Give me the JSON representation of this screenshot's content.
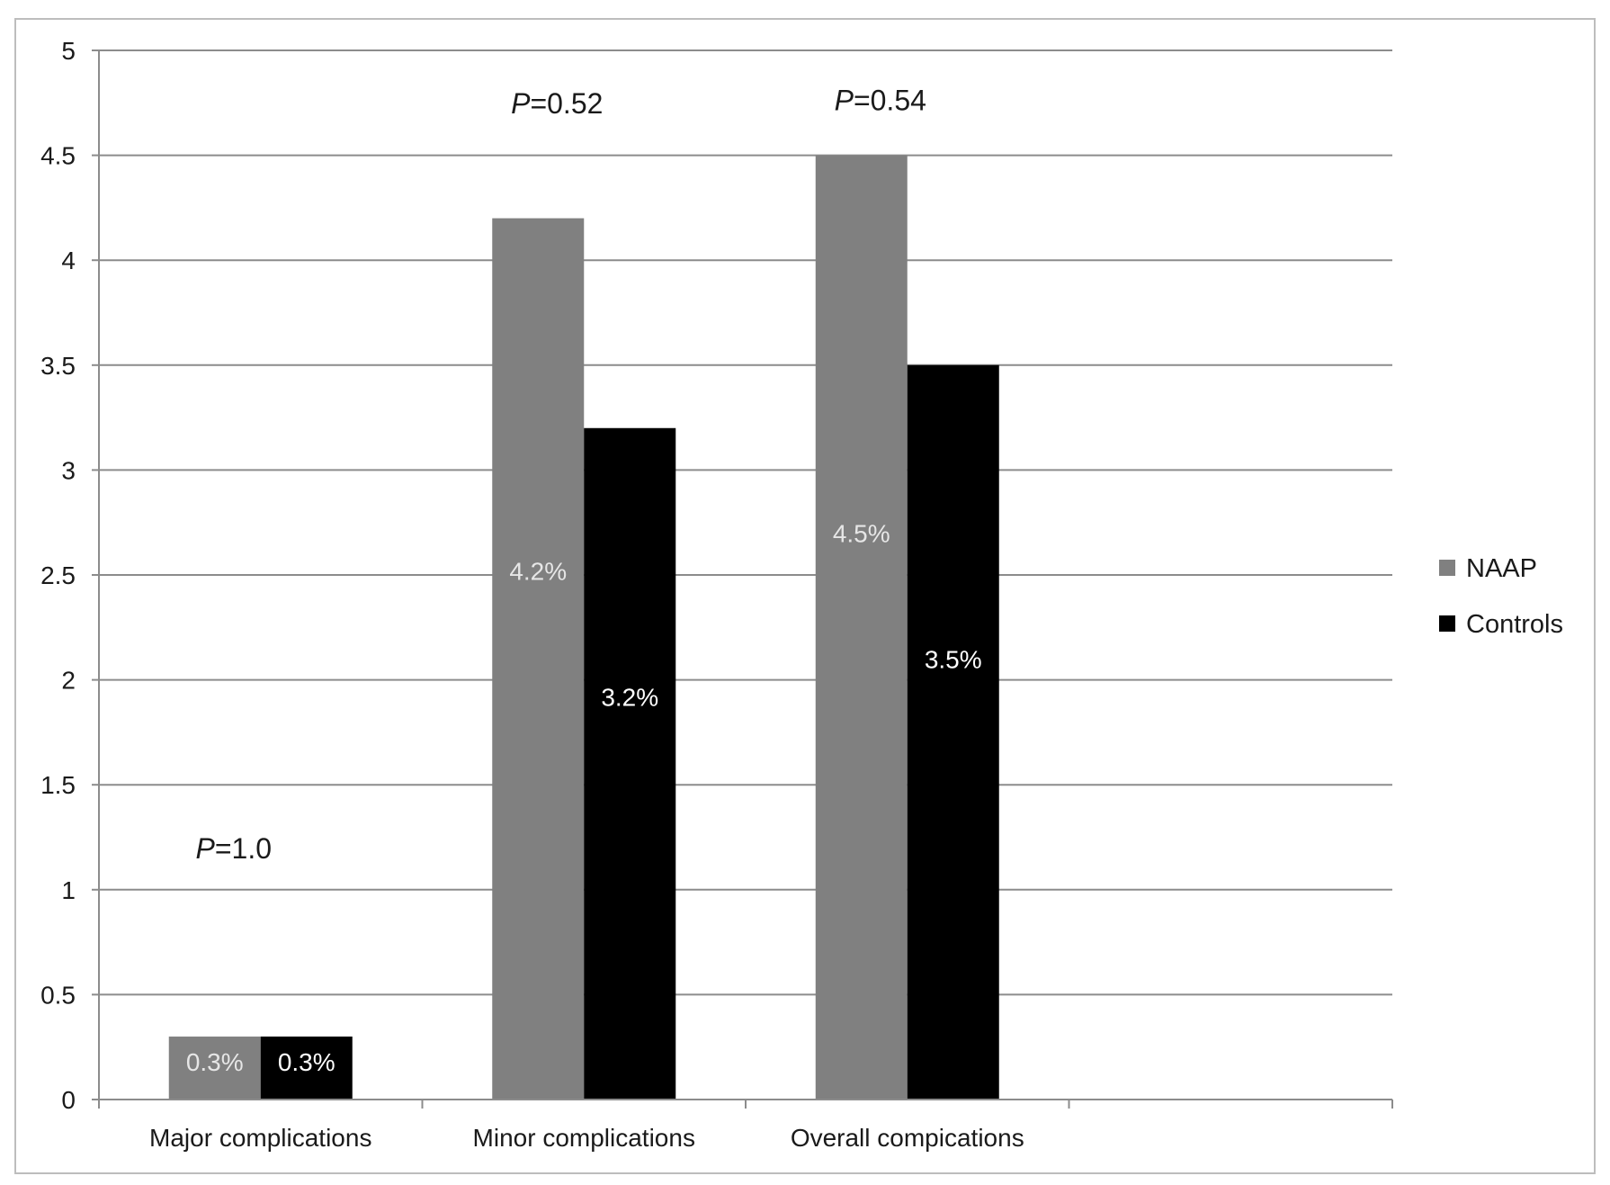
{
  "chart_data": {
    "type": "bar",
    "title": "",
    "xlabel": "",
    "ylabel": "",
    "ylim": [
      0,
      5
    ],
    "yticks": [
      0,
      0.5,
      1,
      1.5,
      2,
      2.5,
      3,
      3.5,
      4,
      4.5,
      5
    ],
    "ytick_labels": [
      "0",
      "0.5",
      "1",
      "1.5",
      "2",
      "2.5",
      "3",
      "3.5",
      "4",
      "4.5",
      "5"
    ],
    "grid": true,
    "legend_position": "right",
    "categories": [
      "Major complications",
      "Minor complications",
      "Overall compications"
    ],
    "series": [
      {
        "name": "NAAP",
        "color": "#808080",
        "label_color": "#e6e6e6",
        "values": [
          0.3,
          4.2,
          4.5
        ],
        "data_labels": [
          "0.3%",
          "4.2%",
          "4.5%"
        ]
      },
      {
        "name": "Controls",
        "color": "#000000",
        "label_color": "#ffffff",
        "values": [
          0.3,
          3.2,
          3.5
        ],
        "data_labels": [
          "0.3%",
          "3.2%",
          "3.5%"
        ]
      }
    ],
    "annotations": [
      {
        "prefix": "P",
        "value": "=1.0",
        "category_index": 0
      },
      {
        "prefix": "P",
        "value": "=0.52",
        "category_index": 1
      },
      {
        "prefix": "P",
        "value": "=0.54",
        "category_index": 2
      }
    ]
  }
}
